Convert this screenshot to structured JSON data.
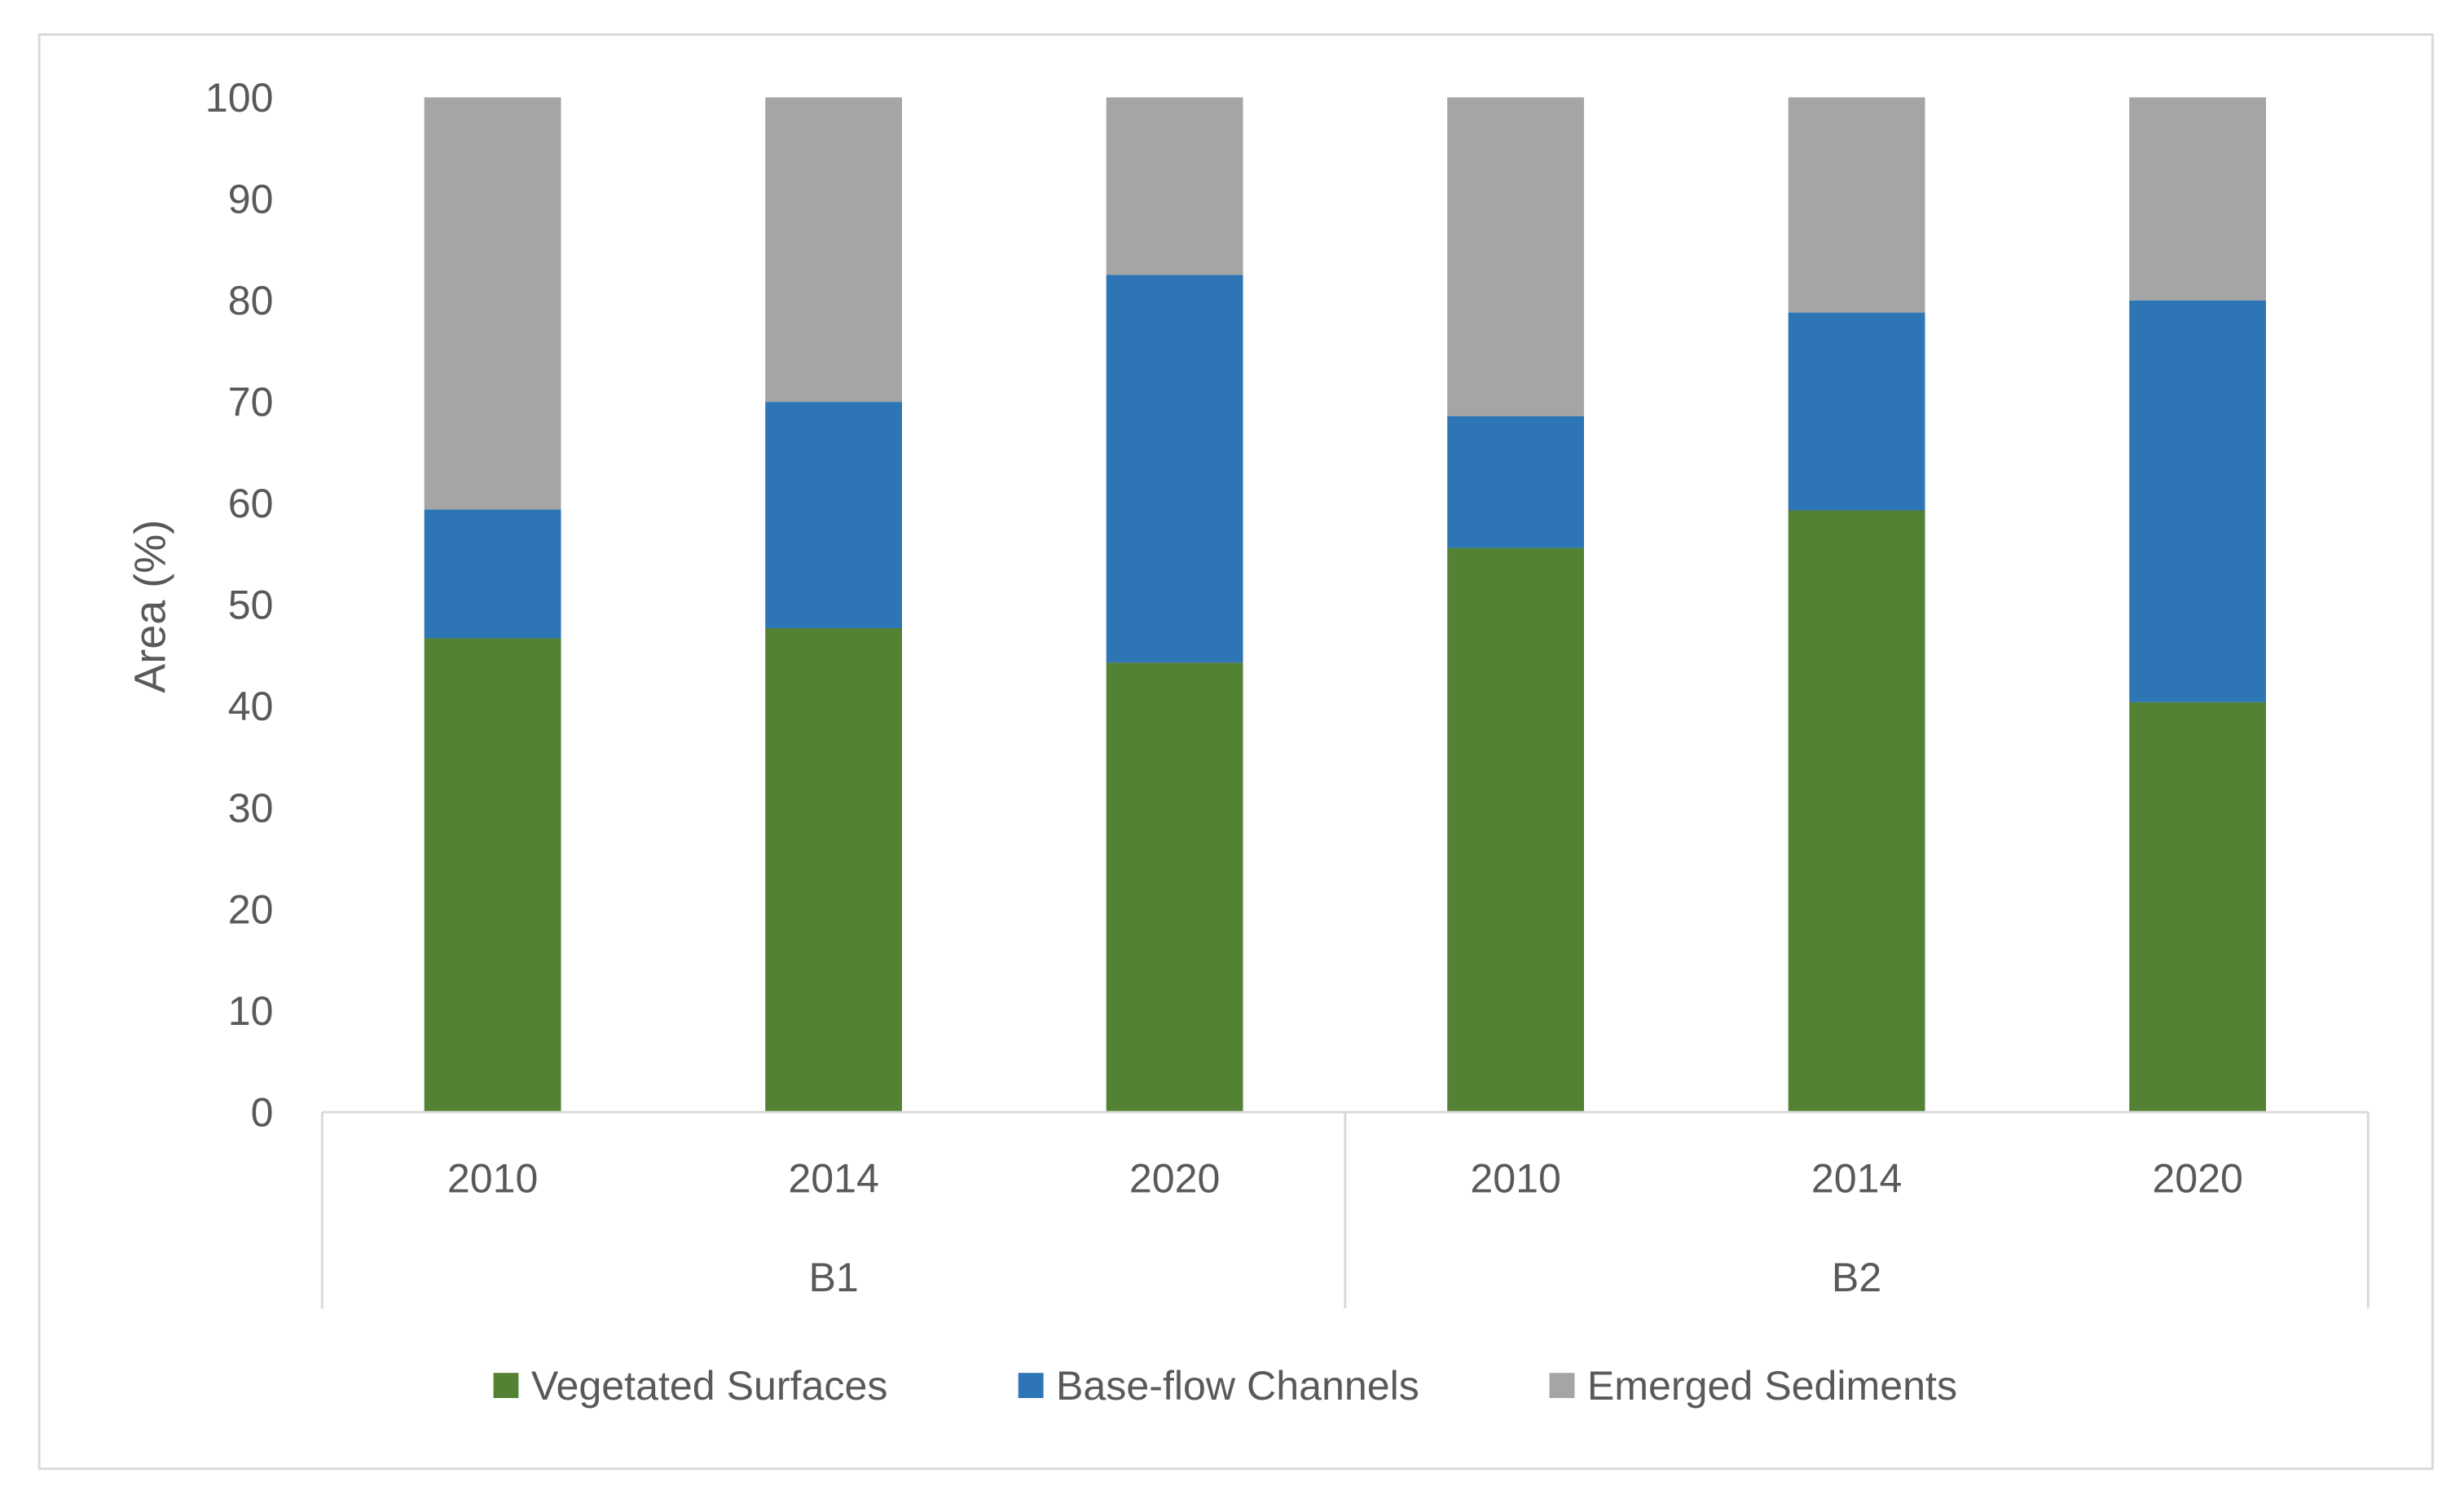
{
  "chart_data": {
    "type": "bar",
    "stacked": true,
    "title": "",
    "xlabel": "",
    "ylabel": "Area (%)",
    "ylim": [
      0,
      100
    ],
    "yticks": [
      0,
      10,
      20,
      30,
      40,
      50,
      60,
      70,
      80,
      90,
      100
    ],
    "groups": [
      {
        "name": "B1",
        "categories": [
          "2010",
          "2014",
          "2020"
        ]
      },
      {
        "name": "B2",
        "categories": [
          "2010",
          "2014",
          "2020"
        ]
      }
    ],
    "categories": [
      "B1 2010",
      "B1 2014",
      "B1 2020",
      "B2 2010",
      "B2 2014",
      "B2 2020"
    ],
    "series": [
      {
        "name": "Vegetated Surfaces",
        "color": "#548235",
        "values": [
          46.7,
          47.7,
          44.3,
          55.6,
          59.3,
          40.4
        ]
      },
      {
        "name": "Base-flow Channels",
        "color": "#2E75B6",
        "values": [
          12.7,
          22.3,
          38.2,
          13.0,
          19.5,
          39.6
        ]
      },
      {
        "name": "Emerged Sediments",
        "color": "#A5A5A5",
        "values": [
          40.6,
          30.0,
          17.5,
          31.4,
          21.2,
          20.0
        ]
      }
    ],
    "grid": false,
    "legend": "bottom"
  }
}
